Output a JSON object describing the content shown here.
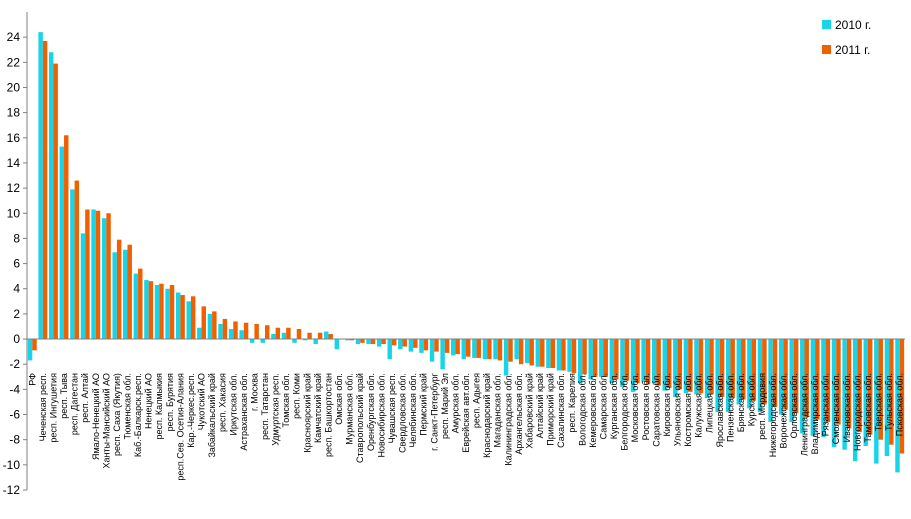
{
  "chart_data": {
    "type": "bar",
    "ylim": [
      -12,
      26
    ],
    "yticks": [
      -12,
      -10,
      -8,
      -6,
      -4,
      -2,
      0,
      2,
      4,
      6,
      8,
      10,
      12,
      14,
      16,
      18,
      20,
      22,
      24
    ],
    "grid": false,
    "legend_position": "top-right",
    "series_colors": [
      "#18d4e8",
      "#f06000"
    ],
    "categories": [
      "РФ",
      "Чеченская респ.",
      "респ. Ингушетия",
      "респ. Тыва",
      "респ. Дагестан",
      "респ. Алтай",
      "Ямало-Ненецкий АО",
      "Ханты-Мансийский АО",
      "респ. Саха (Якутия)",
      "Тюменская обл.",
      "Каб.-Балкарск.респ.",
      "Ненецкий АО",
      "респ. Калмыкия",
      "респ. Бурятия",
      "респ.Сев. Осетия-Алания",
      "Кар.-Черкес.респ.",
      "Чукотский АО",
      "Забайкальский край",
      "респ. Хакасия",
      "Иркутская обл.",
      "Астраханская обл.",
      "г. Москва",
      "респ. Татарстан",
      "Удмуртская респ.",
      "Томская обл.",
      "респ. Коми",
      "Красноярский край",
      "Камчатский край",
      "респ. Башкортостан",
      "Омская обл.",
      "Мурманская обл.",
      "Ставропольский край",
      "Оренбургская обл.",
      "Новосибирская обл.",
      "Чувашская респ.",
      "Свердловская обл.",
      "Челябинская обл.",
      "Пермский край",
      "г. Санкт-Петербург",
      "респ. Марий Эл",
      "Амурская обл.",
      "Еврейская авт.обл.",
      "респ. Адыгея",
      "Краснодарский край",
      "Магаданская обл.",
      "Калининградская обл.",
      "Архангельская обл.",
      "Хабаровский край",
      "Алтайский край",
      "Приморский край",
      "Сахалинская обл.",
      "респ. Карелия",
      "Вологодская обл.",
      "Кемеровская обл.",
      "Самарская обл.",
      "Курганская обл.",
      "Белгородская обл.",
      "Московская обл.",
      "Ростовская обл.",
      "Саратовская обл.",
      "Кировская обл.",
      "Ульяновская обл.",
      "Костромская обл.",
      "Калужская обл.",
      "Липецкая обл.",
      "Ярославская обл.",
      "Пензенская обл.",
      "Брянская обл.",
      "Курская обл.",
      "респ. Мордовия",
      "Нижегородская обл.",
      "Воронежская обл.",
      "Орловская обл.",
      "Ленинградская обл.",
      "Владимирская обл.",
      "Рязанская обл.",
      "Смоленская обл.",
      "Ивановская обл.",
      "Новгородская обл.",
      "Тамбовская обл.",
      "Тверская обл.",
      "Тульская обл.",
      "Псковская обл."
    ],
    "series": [
      {
        "name": "2010 г.",
        "values": [
          -1.7,
          24.4,
          22.8,
          15.3,
          11.9,
          8.4,
          10.3,
          9.6,
          6.9,
          7.1,
          5.2,
          4.7,
          4.3,
          4.0,
          3.7,
          3.0,
          0.9,
          2.0,
          1.2,
          0.8,
          0.7,
          -0.3,
          -0.3,
          0.4,
          0.5,
          -0.3,
          -0.1,
          -0.4,
          0.6,
          -0.8,
          -0.1,
          -0.4,
          -0.4,
          -0.6,
          -1.6,
          -0.8,
          -1.0,
          -1.1,
          -1.8,
          -2.4,
          -1.3,
          -1.6,
          -1.5,
          -1.6,
          -1.6,
          -2.9,
          -1.6,
          -1.9,
          -2.2,
          -2.3,
          -2.5,
          -2.6,
          -3.5,
          -3.2,
          -3.0,
          -3.5,
          -3.8,
          -4.2,
          -3.4,
          -3.5,
          -4.1,
          -4.6,
          -4.3,
          -4.4,
          -4.7,
          -5.8,
          -5.8,
          -5.2,
          -5.5,
          -5.8,
          -6.6,
          -6.0,
          -6.6,
          -7.5,
          -7.7,
          -7.8,
          -8.6,
          -8.8,
          -9.7,
          -8.5,
          -9.9,
          -9.3,
          -10.6
        ]
      },
      {
        "name": "2011 г.",
        "values": [
          -0.9,
          23.7,
          21.9,
          16.2,
          12.6,
          10.3,
          10.2,
          10.0,
          7.9,
          7.5,
          5.6,
          4.6,
          4.4,
          4.3,
          3.5,
          3.4,
          2.6,
          2.2,
          1.6,
          1.4,
          1.3,
          1.2,
          1.1,
          0.9,
          0.9,
          0.8,
          0.5,
          0.5,
          0.4,
          0.0,
          -0.1,
          -0.3,
          -0.4,
          -0.4,
          -0.5,
          -0.6,
          -0.7,
          -0.9,
          -1.0,
          -1.1,
          -1.2,
          -1.4,
          -1.5,
          -1.6,
          -1.7,
          -1.8,
          -2.0,
          -2.1,
          -2.2,
          -2.3,
          -2.5,
          -2.7,
          -2.8,
          -3.0,
          -3.0,
          -3.2,
          -3.3,
          -3.5,
          -3.6,
          -3.7,
          -3.9,
          -4.0,
          -4.2,
          -4.3,
          -4.4,
          -4.6,
          -4.7,
          -4.8,
          -4.9,
          -5.2,
          -5.4,
          -5.6,
          -5.9,
          -6.2,
          -6.4,
          -6.6,
          -6.8,
          -7.1,
          -7.4,
          -7.6,
          -8.0,
          -8.4,
          -9.1
        ]
      }
    ]
  }
}
